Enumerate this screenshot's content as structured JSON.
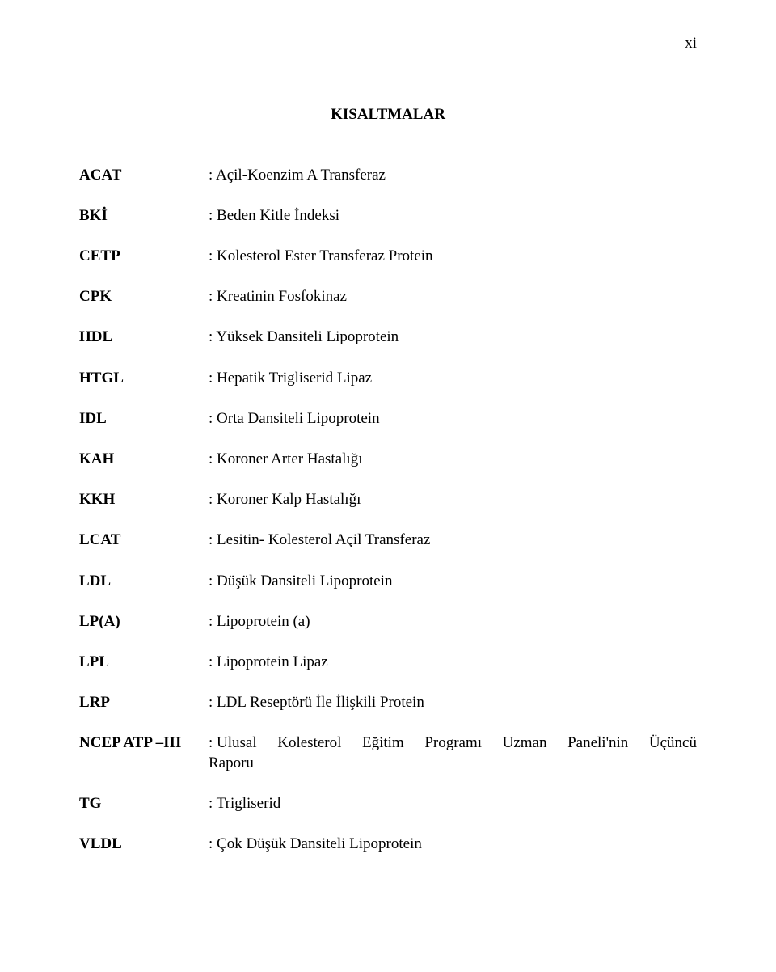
{
  "page_number": "xi",
  "title": "KISALTMALAR",
  "items": [
    {
      "key": "ACAT",
      "val": ": Açil-Koenzim A Transferaz"
    },
    {
      "key": "BKİ",
      "val": ": Beden Kitle İndeksi"
    },
    {
      "key": "CETP",
      "val": ": Kolesterol Ester Transferaz Protein"
    },
    {
      "key": "CPK",
      "val": ": Kreatinin Fosfokinaz"
    },
    {
      "key": "HDL",
      "val": ": Yüksek Dansiteli Lipoprotein"
    },
    {
      "key": "HTGL",
      "val": ": Hepatik Trigliserid Lipaz"
    },
    {
      "key": "IDL",
      "val": ": Orta Dansiteli Lipoprotein"
    },
    {
      "key": "KAH",
      "val": ": Koroner Arter Hastalığı"
    },
    {
      "key": "KKH",
      "val": ": Koroner Kalp Hastalığı"
    },
    {
      "key": "LCAT",
      "val": ": Lesitin- Kolesterol Açil Transferaz"
    },
    {
      "key": "LDL",
      "val": ": Düşük Dansiteli Lipoprotein"
    },
    {
      "key": "LP(A)",
      "val": ": Lipoprotein (a)"
    },
    {
      "key": "LPL",
      "val": ": Lipoprotein Lipaz"
    },
    {
      "key": "LRP",
      "val": ": LDL Reseptörü İle İlişkili Protein"
    }
  ],
  "ncep": {
    "key": "NCEP ATP –III",
    "line1_words": [
      ": Ulusal",
      "Kolesterol",
      "Eğitim",
      "Programı",
      "Uzman",
      "Paneli'nin",
      "Üçüncü"
    ],
    "line2": "Raporu"
  },
  "tail": [
    {
      "key": "TG",
      "val": ": Trigliserid"
    },
    {
      "key": "VLDL",
      "val": ": Çok Düşük Dansiteli Lipoprotein"
    }
  ]
}
